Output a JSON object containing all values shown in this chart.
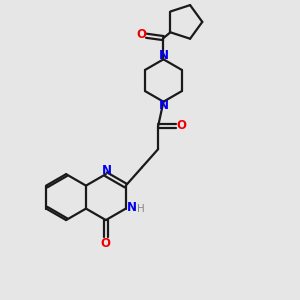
{
  "bg_color": "#e6e6e6",
  "bond_color": "#1a1a1a",
  "N_color": "#0000ee",
  "O_color": "#ee0000",
  "H_color": "#888888",
  "lw": 1.6,
  "fs": 8.5,
  "xlim": [
    0,
    10
  ],
  "ylim": [
    0,
    10
  ]
}
